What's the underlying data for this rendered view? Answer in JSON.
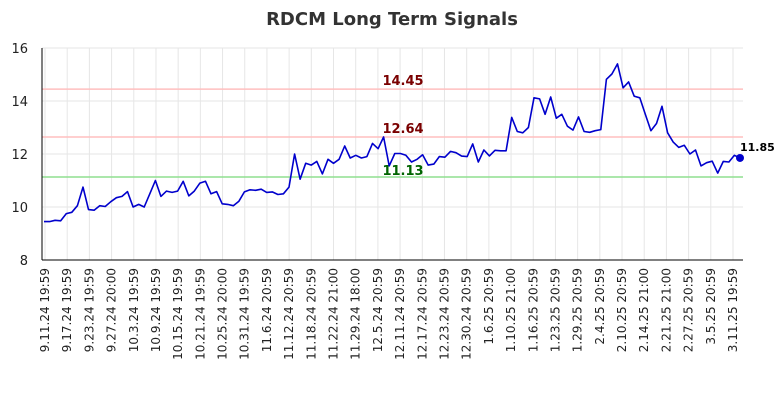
{
  "chart_data": {
    "type": "line",
    "title": "RDCM Long Term Signals",
    "xlabel": "",
    "ylabel": "",
    "ylim": [
      8,
      16
    ],
    "yticks": [
      8,
      10,
      12,
      14,
      16
    ],
    "grid": true,
    "x_tick_labels": [
      "9.11.24 19:59",
      "9.17.24 19:59",
      "9.23.24 19:59",
      "9.27.24 20:00",
      "10.3.24 19:59",
      "10.9.24 19:59",
      "10.15.24 19:59",
      "10.21.24 19:59",
      "10.25.24 20:00",
      "10.31.24 19:59",
      "11.6.24 20:59",
      "11.12.24 20:59",
      "11.18.24 20:59",
      "11.22.24 21:00",
      "11.29.24 18:00",
      "12.5.24 20:59",
      "12.11.24 20:59",
      "12.17.24 20:59",
      "12.23.24 20:59",
      "12.30.24 20:59",
      "1.6.25 20:59",
      "1.10.25 21:00",
      "1.16.25 20:59",
      "1.23.25 20:59",
      "1.29.25 20:59",
      "2.4.25 20:59",
      "2.10.25 20:59",
      "2.14.25 21:00",
      "2.21.25 21:00",
      "2.27.25 20:59",
      "3.5.25 20:59",
      "3.11.25 19:59"
    ],
    "series": [
      {
        "color": "#0000cc",
        "values": [
          9.45,
          9.45,
          9.5,
          9.48,
          9.75,
          9.8,
          10.05,
          10.75,
          9.9,
          9.88,
          10.05,
          10.02,
          10.2,
          10.35,
          10.4,
          10.58,
          10.0,
          10.1,
          10.0,
          10.5,
          11.0,
          10.4,
          10.6,
          10.55,
          10.6,
          10.97,
          10.42,
          10.6,
          10.9,
          10.97,
          10.5,
          10.58,
          10.12,
          10.1,
          10.05,
          10.22,
          10.57,
          10.65,
          10.63,
          10.67,
          10.55,
          10.57,
          10.47,
          10.5,
          10.75,
          12.0,
          11.05,
          11.65,
          11.58,
          11.72,
          11.25,
          11.8,
          11.65,
          11.8,
          12.3,
          11.85,
          11.95,
          11.85,
          11.9,
          12.4,
          12.2,
          12.64,
          11.55,
          12.02,
          12.02,
          11.95,
          11.7,
          11.8,
          11.97,
          11.58,
          11.62,
          11.9,
          11.88,
          12.1,
          12.05,
          11.92,
          11.9,
          12.38,
          11.7,
          12.15,
          11.93,
          12.14,
          12.12,
          12.12,
          13.38,
          12.85,
          12.8,
          13.0,
          14.12,
          14.08,
          13.5,
          14.15,
          13.35,
          13.5,
          13.05,
          12.9,
          13.4,
          12.85,
          12.82,
          12.88,
          12.92,
          14.82,
          15.02,
          15.4,
          14.5,
          14.72,
          14.18,
          14.12,
          13.5,
          12.88,
          13.15,
          13.8,
          12.8,
          12.45,
          12.25,
          12.33,
          12.0,
          12.15,
          11.55,
          11.67,
          11.73,
          11.28,
          11.72,
          11.7,
          11.95,
          11.85
        ]
      }
    ],
    "levels": [
      {
        "label": "14.45",
        "value": 14.45,
        "line_color": "#ffbfbf",
        "label_color": "#7a0000"
      },
      {
        "label": "12.64",
        "value": 12.64,
        "line_color": "#ffbfbf",
        "label_color": "#7a0000"
      },
      {
        "label": "11.13",
        "value": 11.13,
        "line_color": "#8fdf8f",
        "label_color": "#006400"
      }
    ],
    "last_value_label": "11.85",
    "last_marker_color": "#0000cc"
  }
}
